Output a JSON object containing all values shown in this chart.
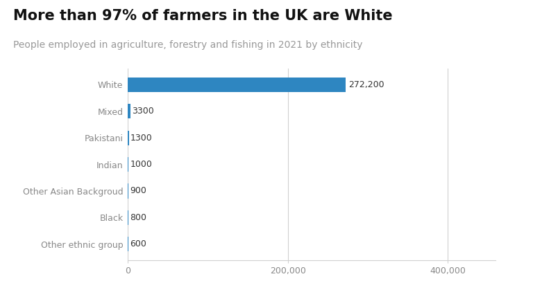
{
  "title": "More than 97% of farmers in the UK are White",
  "subtitle": "People employed in agriculture, forestry and fishing in 2021 by ethnicity",
  "categories": [
    "White",
    "Mixed",
    "Pakistani",
    "Indian",
    "Other Asian Backgroud",
    "Black",
    "Other ethnic group"
  ],
  "values": [
    272200,
    3300,
    1300,
    1000,
    900,
    800,
    600
  ],
  "labels": [
    "272,200",
    "3300",
    "1300",
    "1000",
    "900",
    "800",
    "600"
  ],
  "bar_color": "#2e86c1",
  "title_fontsize": 15,
  "subtitle_fontsize": 10,
  "tick_label_fontsize": 9,
  "label_fontsize": 9,
  "xticks": [
    0,
    200000,
    400000
  ],
  "xtick_labels": [
    "0",
    "200,000",
    "400,000"
  ],
  "xlim": [
    0,
    460000
  ],
  "background_color": "#ffffff",
  "grid_color": "#d0d0d0",
  "label_color": "#333333",
  "category_color": "#888888",
  "bar_height": 0.55
}
